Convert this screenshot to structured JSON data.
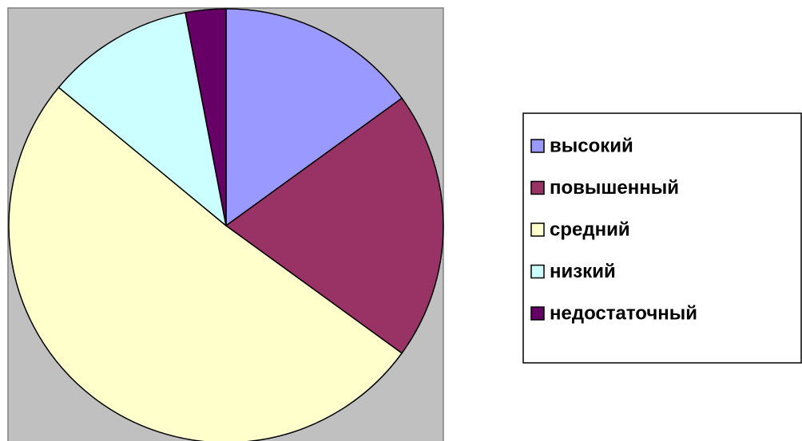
{
  "chart_data": {
    "type": "pie",
    "categories": [
      "высокий",
      "повышенный",
      "средний",
      "низкий",
      "недостаточный"
    ],
    "values": [
      15,
      20,
      51,
      11,
      3
    ],
    "colors": [
      "#9999ff",
      "#993366",
      "#ffffcc",
      "#ccffff",
      "#660066"
    ],
    "legend": "right"
  }
}
